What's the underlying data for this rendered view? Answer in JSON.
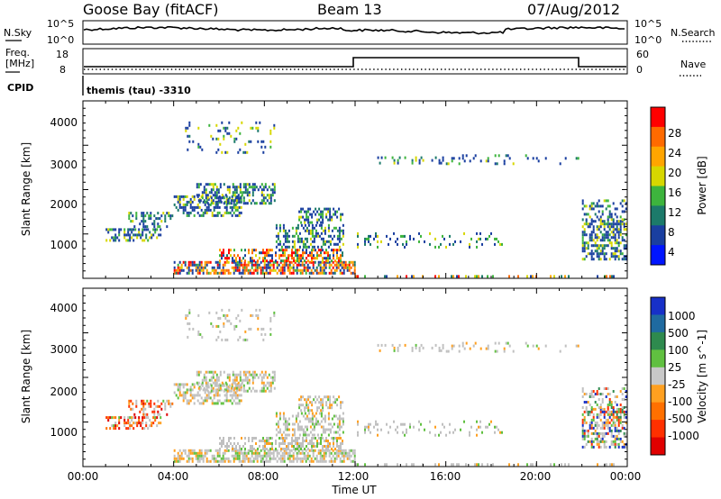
{
  "header": {
    "station": "Goose Bay (fitACF)",
    "beam": "Beam 13",
    "date": "07/Aug/2012"
  },
  "noise_panel": {
    "left_label": "N.Sky",
    "left_ticks": [
      "10^5",
      "10^0"
    ],
    "right_ticks": [
      "10^5",
      "10^0"
    ],
    "right_label": "N.Search"
  },
  "freq_panel": {
    "left_label_1": "Freq.",
    "left_label_2": "[MHz]",
    "left_ticks": [
      "18",
      "8"
    ],
    "right_ticks": [
      "60",
      "0"
    ],
    "right_label": "Nave"
  },
  "cpid_panel": {
    "label": "CPID",
    "text": "themis (tau) -3310"
  },
  "colors": {
    "scatter_blue": "#2a4fb0",
    "scatter_green": "#3a8a55",
    "power_red": "#e0261b",
    "velocity_gray": "#c0c0c0",
    "ground_scatter": "#bdbdbd"
  },
  "chart_data": [
    {
      "type": "heatmap",
      "name": "power",
      "ylabel": "Slant Range [km]",
      "yticks": [
        "4000",
        "3000",
        "2000",
        "1000"
      ],
      "ylim": [
        180,
        4500
      ],
      "xlabel": "",
      "xlim": [
        0,
        24
      ],
      "colorbar": {
        "label": "Power [dB]",
        "ticks": [
          "28",
          "24",
          "20",
          "16",
          "12",
          "8",
          "4"
        ],
        "colors": [
          "#ff0000",
          "#ff6a00",
          "#ffa500",
          "#d7d700",
          "#3db43d",
          "#1c7a6a",
          "#1a3fa0",
          "#0015ff"
        ]
      }
    },
    {
      "type": "heatmap",
      "name": "velocity",
      "ylabel": "Slant Range [km]",
      "yticks": [
        "4000",
        "3000",
        "2000",
        "1000"
      ],
      "ylim": [
        180,
        4500
      ],
      "xlabel": "Time UT",
      "xticks": [
        "00:00",
        "04:00",
        "08:00",
        "12:00",
        "16:00",
        "20:00",
        "00:00"
      ],
      "xlim": [
        0,
        24
      ],
      "colorbar": {
        "label": "Velocity [m s^-1]",
        "ticks": [
          "1000",
          "500",
          "100",
          "25",
          "-25",
          "-100",
          "-500",
          "-1000"
        ],
        "colors": [
          "#1730c8",
          "#1f6aa0",
          "#2e8a4e",
          "#60c040",
          "#c8c8c8",
          "#ffa020",
          "#ff7000",
          "#ff3000",
          "#e00000"
        ]
      }
    }
  ]
}
